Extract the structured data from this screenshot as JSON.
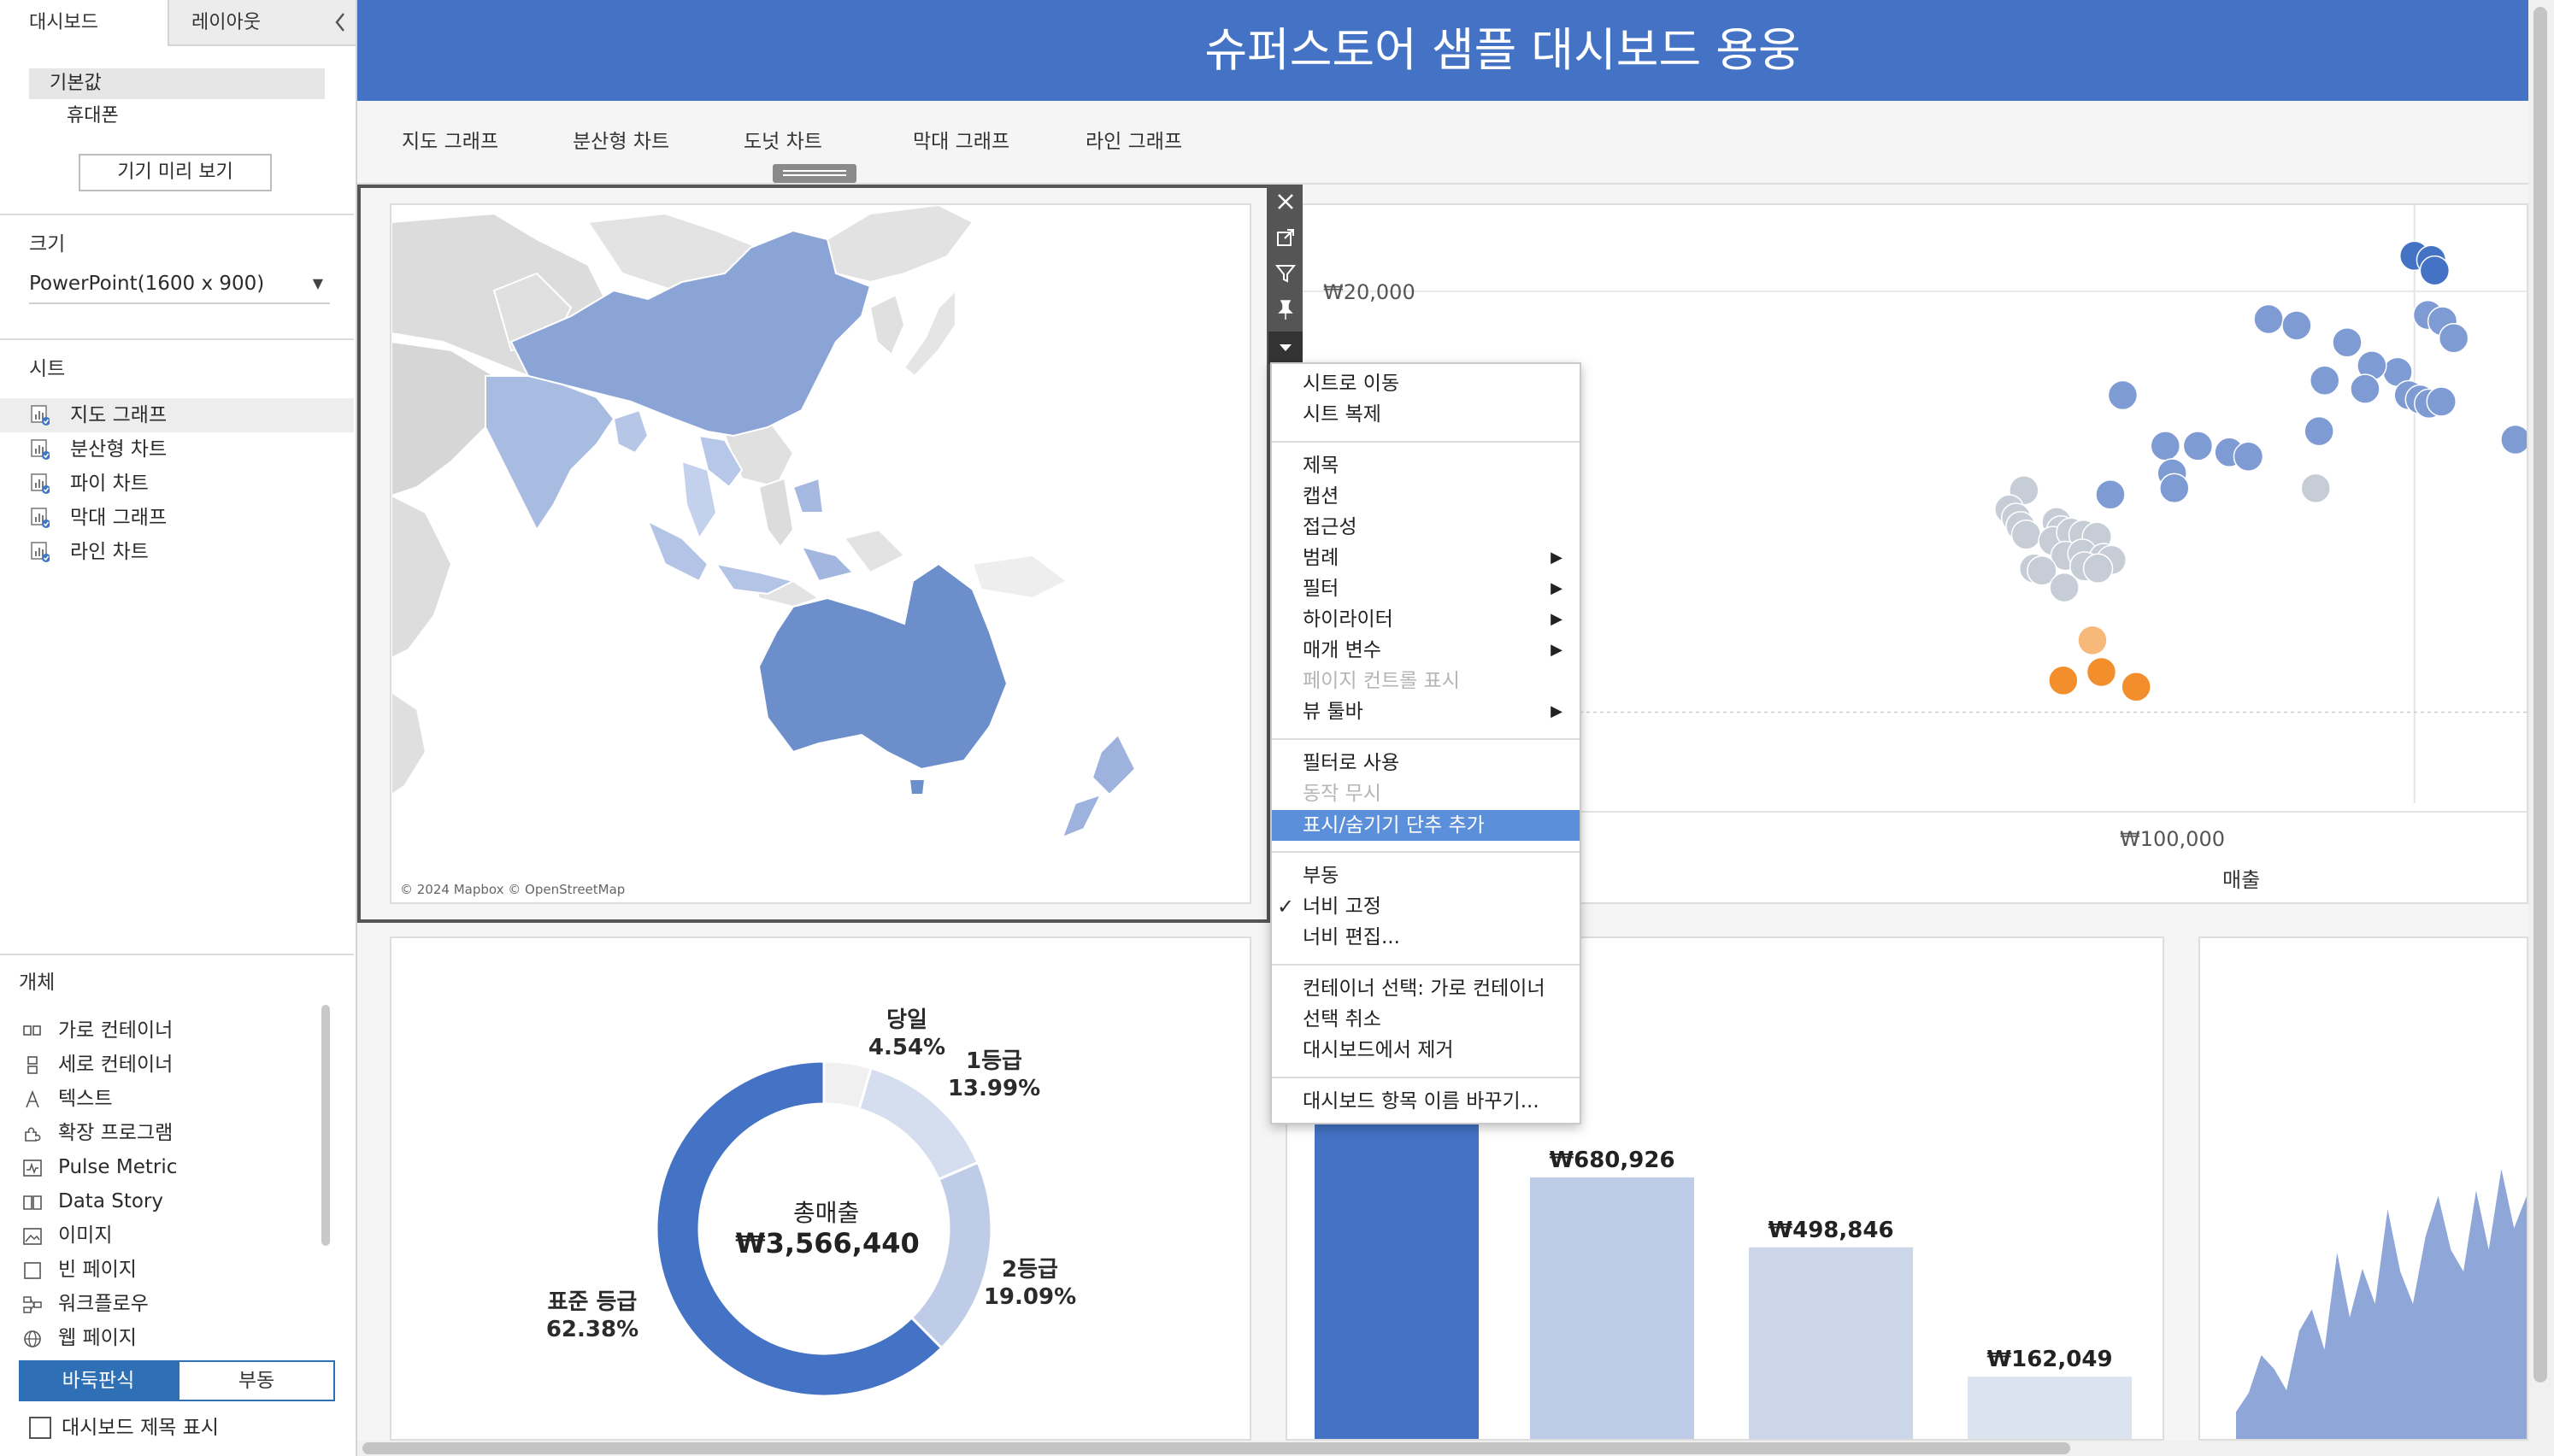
{
  "left_panel": {
    "tabs": [
      "대시보드",
      "레이아웃"
    ],
    "collapse_icon": "chevron-left-icon",
    "device_options": [
      "기본값",
      "휴대폰"
    ],
    "preview_button": "기기 미리 보기",
    "size_title": "크기",
    "size_value": "PowerPoint(1600 x 900)",
    "sheets_title": "시트",
    "sheets": [
      "지도 그래프",
      "분산형 차트",
      "파이 차트",
      "막대 그래프",
      "라인 차트"
    ],
    "objects_title": "개체",
    "objects": [
      {
        "label": "가로 컨테이너",
        "icon": "horizontal-container-icon"
      },
      {
        "label": "세로 컨테이너",
        "icon": "vertical-container-icon"
      },
      {
        "label": "텍스트",
        "icon": "text-icon"
      },
      {
        "label": "확장 프로그램",
        "icon": "extension-icon"
      },
      {
        "label": "Pulse Metric",
        "icon": "pulse-metric-icon"
      },
      {
        "label": "Data Story",
        "icon": "data-story-icon"
      },
      {
        "label": "이미지",
        "icon": "image-icon"
      },
      {
        "label": "빈 페이지",
        "icon": "blank-page-icon"
      },
      {
        "label": "워크플로우",
        "icon": "workflow-icon"
      },
      {
        "label": "웹 페이지",
        "icon": "web-page-icon"
      }
    ],
    "layout_toggle": [
      "바둑판식",
      "부동"
    ],
    "show_title_checkbox": "대시보드 제목 표시"
  },
  "dashboard": {
    "title": "슈퍼스토어 샘플 대시보드 용웅",
    "nav_tabs": [
      "지도 그래프",
      "분산형 차트",
      "도넛 차트",
      "막대 그래프",
      "라인 그래프"
    ],
    "map_credit": "© 2024 Mapbox © OpenStreetMap",
    "colors": {
      "header": "#4472c4",
      "accent": "#4472c4",
      "orange": "#f28e2b",
      "menu_highlight": "#5b8fd9"
    }
  },
  "floating_toolbar": [
    "close-icon",
    "open-sheet-icon",
    "filter-icon",
    "pin-icon",
    "more-options-icon"
  ],
  "context_menu": {
    "groups": [
      [
        {
          "label": "시트로 이동"
        },
        {
          "label": "시트 복제"
        }
      ],
      [
        {
          "label": "제목"
        },
        {
          "label": "캡션"
        },
        {
          "label": "접근성"
        },
        {
          "label": "범례",
          "arrow": "▶"
        },
        {
          "label": "필터",
          "arrow": "▶"
        },
        {
          "label": "하이라이터",
          "arrow": "▶"
        },
        {
          "label": "매개 변수",
          "arrow": "▶"
        },
        {
          "label": "페이지 컨트롤 표시",
          "disabled": true
        },
        {
          "label": "뷰 툴바",
          "arrow": "▶"
        }
      ],
      [
        {
          "label": "필터로 사용"
        },
        {
          "label": "동작 무시",
          "disabled": true
        },
        {
          "label": "표시/숨기기 단추 추가",
          "highlighted": true
        }
      ],
      [
        {
          "label": "부동"
        },
        {
          "label": "너비 고정",
          "checked": true
        },
        {
          "label": "너비 편집..."
        }
      ],
      [
        {
          "label": "컨테이너 선택: 가로 컨테이너"
        },
        {
          "label": "선택 취소"
        },
        {
          "label": "대시보드에서 제거"
        }
      ],
      [
        {
          "label": "대시보드 항목 이름 바꾸기..."
        }
      ]
    ],
    "check_mark": "✓"
  },
  "chart_data": [
    {
      "type": "scatter",
      "y_tick_labels": [
        "₩20,000"
      ],
      "x_tick_labels": [
        "₩100,000"
      ],
      "xlabel": "매출",
      "x_tick_value": 100000,
      "y_tick_value": 20000,
      "xlim": [
        0,
        110000
      ],
      "ylim": [
        -9000,
        24000
      ],
      "points_blue": [
        [
          100000,
          21600
        ],
        [
          101500,
          21400
        ],
        [
          101800,
          20900
        ],
        [
          94000,
          17500
        ],
        [
          101200,
          18800
        ],
        [
          102500,
          18500
        ],
        [
          103500,
          17700
        ],
        [
          87000,
          18600
        ],
        [
          89500,
          18300
        ],
        [
          74000,
          15000
        ],
        [
          92000,
          15700
        ],
        [
          98500,
          16100
        ],
        [
          96200,
          16400
        ],
        [
          95600,
          15300
        ],
        [
          99500,
          15000
        ],
        [
          100500,
          14800
        ],
        [
          101300,
          14600
        ],
        [
          102400,
          14700
        ],
        [
          91500,
          13300
        ],
        [
          109000,
          12900
        ],
        [
          77800,
          12600
        ],
        [
          80700,
          12600
        ],
        [
          83500,
          12300
        ],
        [
          85200,
          12100
        ],
        [
          78400,
          11300
        ],
        [
          78600,
          10600
        ],
        [
          72900,
          10300
        ]
      ],
      "points_gray": [
        [
          91200,
          10600
        ],
        [
          65200,
          10500
        ],
        [
          63900,
          9600
        ],
        [
          64500,
          9200
        ],
        [
          64900,
          8800
        ],
        [
          65400,
          8400
        ],
        [
          68100,
          9000
        ],
        [
          68500,
          8600
        ],
        [
          67800,
          8100
        ],
        [
          69400,
          8500
        ],
        [
          70500,
          8400
        ],
        [
          71700,
          8300
        ],
        [
          68900,
          7400
        ],
        [
          70400,
          7500
        ],
        [
          72300,
          7300
        ],
        [
          73000,
          7200
        ],
        [
          66100,
          6800
        ],
        [
          66800,
          6700
        ],
        [
          70600,
          6900
        ],
        [
          71800,
          6800
        ],
        [
          68800,
          5900
        ]
      ],
      "points_orange": [
        [
          71300,
          3400
        ],
        [
          68700,
          1500
        ],
        [
          72100,
          1900
        ],
        [
          75200,
          1200
        ]
      ]
    },
    {
      "type": "pie",
      "center_title": "총매출",
      "total_label": "₩3,566,440",
      "slices": [
        {
          "name": "당일",
          "value": 4.54,
          "label": "4.54%",
          "color": "#f0f0f0"
        },
        {
          "name": "1등급",
          "value": 13.99,
          "label": "13.99%",
          "color": "#d5deee"
        },
        {
          "name": "2등급",
          "value": 19.09,
          "label": "19.09%",
          "color": "#bfcce7"
        },
        {
          "name": "표준 등급",
          "value": 62.38,
          "label": "62.38%",
          "color": "#4472c4"
        }
      ]
    },
    {
      "type": "bar",
      "bars": [
        {
          "label": "",
          "value": 2224625,
          "color": "#4472c4"
        },
        {
          "label": "₩680,926",
          "value": 680926,
          "color": "#bfcce7"
        },
        {
          "label": "₩498,846",
          "value": 498846,
          "color": "#ccd6ea"
        },
        {
          "label": "₩162,049",
          "value": 162049,
          "color": "#dbe2f0"
        }
      ]
    },
    {
      "type": "area",
      "values": [
        0.1,
        0.17,
        0.31,
        0.26,
        0.18,
        0.4,
        0.48,
        0.33,
        0.69,
        0.45,
        0.63,
        0.5,
        0.85,
        0.62,
        0.5,
        0.75,
        0.9,
        0.7,
        0.62,
        0.92,
        0.7,
        1.0,
        0.78,
        0.9
      ]
    }
  ]
}
